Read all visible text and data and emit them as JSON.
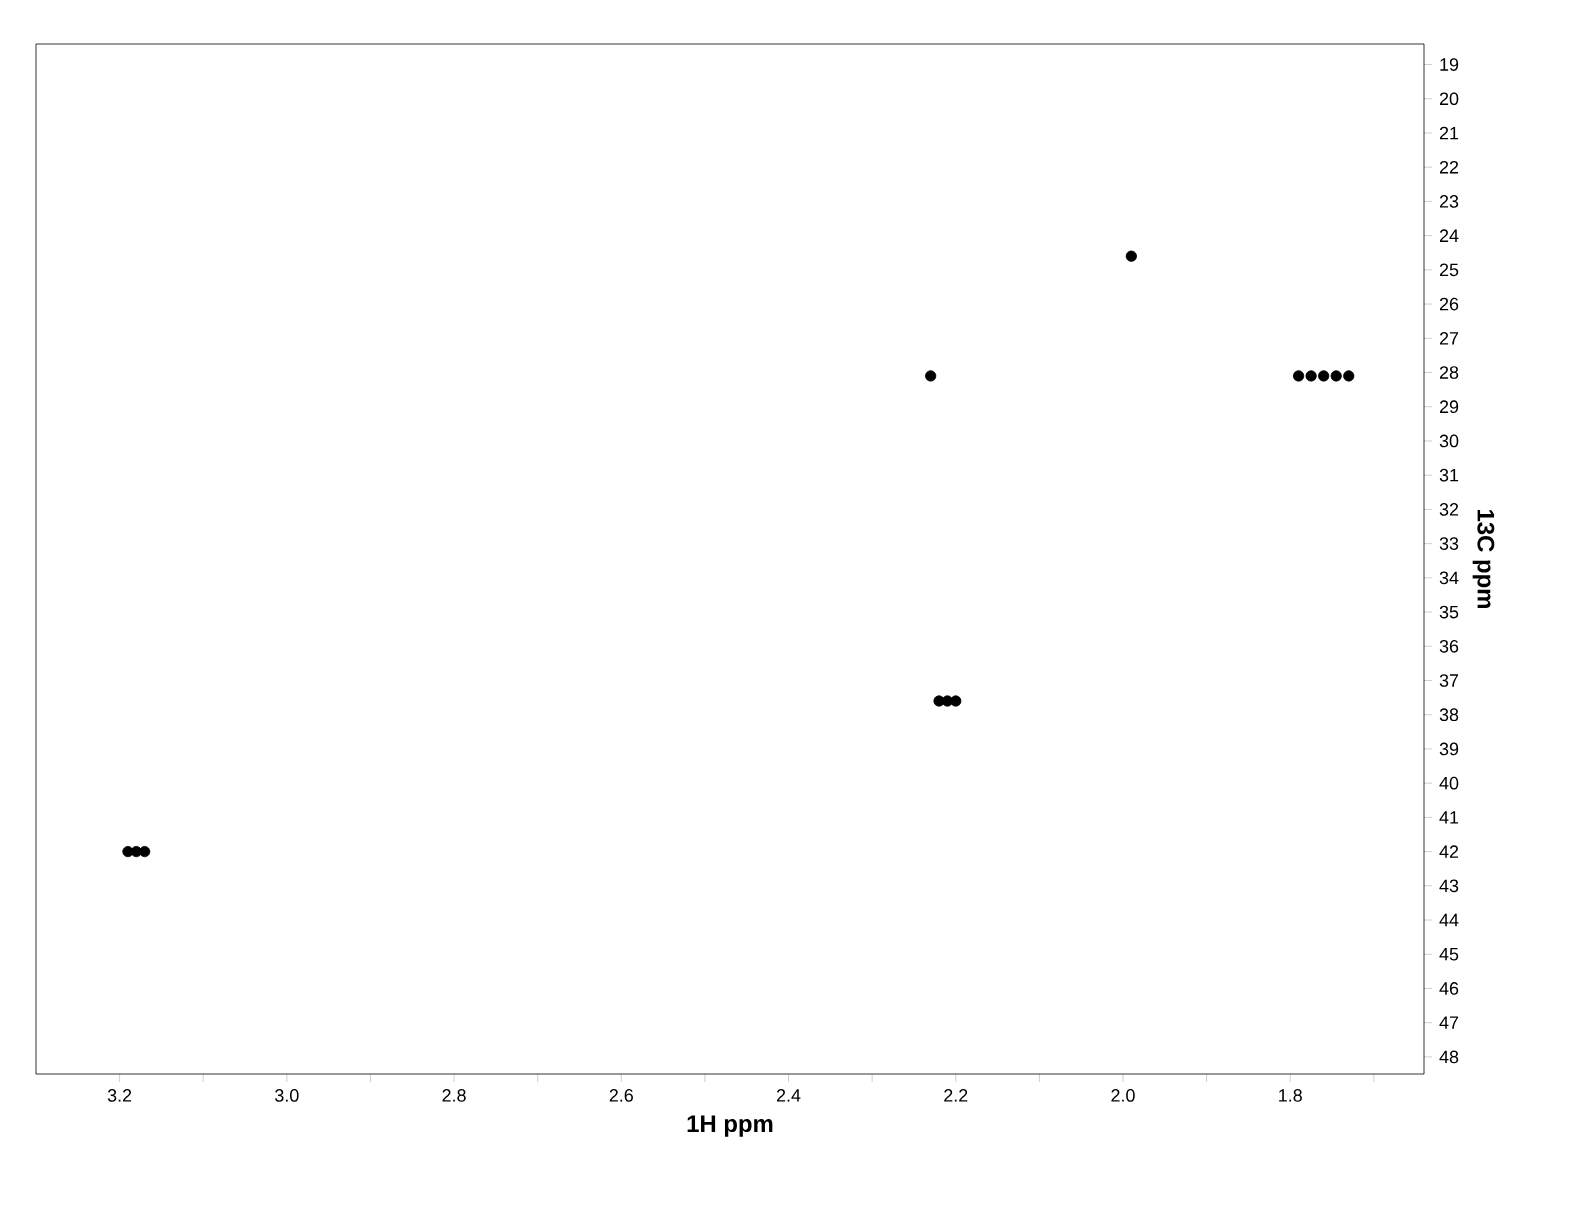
{
  "chart_data": {
    "type": "scatter",
    "xlabel": "1H ppm",
    "ylabel": "13C ppm",
    "x": [
      3.19,
      3.18,
      3.17,
      2.22,
      2.21,
      2.2,
      1.99,
      1.79,
      1.775,
      1.76,
      1.745,
      1.73,
      2.23
    ],
    "values": [
      42.0,
      42.0,
      42.0,
      37.6,
      37.6,
      37.6,
      24.6,
      28.1,
      28.1,
      28.1,
      28.1,
      28.1,
      28.1
    ],
    "color": "#000000",
    "marker": "circle",
    "xlim": [
      3.3,
      1.64
    ],
    "ylim": [
      48.5,
      18.4
    ],
    "xticks": [
      3.2,
      {
        "value": 3.1,
        "label": null
      },
      {
        "value": 3.0,
        "label": "3.0"
      },
      {
        "value": 2.9,
        "label": null
      },
      2.8,
      {
        "value": 2.7,
        "label": null
      },
      2.6,
      {
        "value": 2.5,
        "label": null
      },
      2.4,
      {
        "value": 2.3,
        "label": null
      },
      2.2,
      {
        "value": 2.1,
        "label": null
      },
      {
        "value": 2.0,
        "label": "2.0"
      },
      {
        "value": 1.9,
        "label": null
      },
      1.8,
      {
        "value": 1.7,
        "label": null
      }
    ],
    "yticks": [
      19,
      20,
      21,
      22,
      23,
      24,
      25,
      26,
      27,
      28,
      29,
      30,
      31,
      32,
      33,
      34,
      35,
      36,
      37,
      38,
      39,
      40,
      41,
      42,
      43,
      44,
      45,
      46,
      47,
      48
    ],
    "grid": false
  }
}
